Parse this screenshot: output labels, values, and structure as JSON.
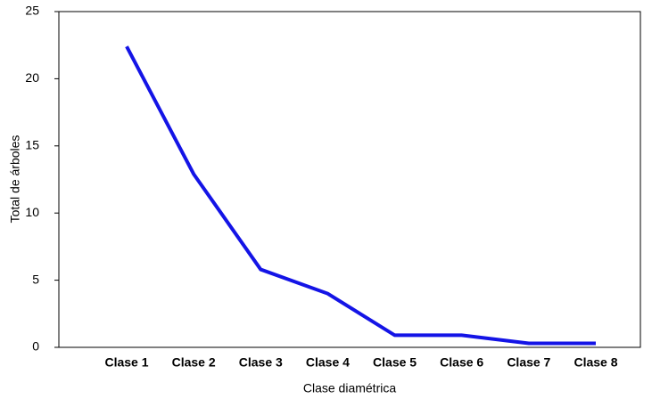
{
  "chart_data": {
    "type": "line",
    "x_label": "Clase diamétrica",
    "y_label": "Total de árboles",
    "categories": [
      "Clase 1",
      "Clase 2",
      "Clase 3",
      "Clase 4",
      "Clase 5",
      "Clase 6",
      "Clase 7",
      "Clase 8"
    ],
    "series": [
      {
        "color": "#1414e6",
        "values": [
          22.4,
          12.9,
          5.8,
          4.0,
          0.9,
          0.9,
          0.3,
          0.3
        ]
      }
    ],
    "ylim": [
      0,
      25
    ],
    "yticks": [
      0,
      5,
      10,
      15,
      20,
      25
    ],
    "grid": false
  }
}
